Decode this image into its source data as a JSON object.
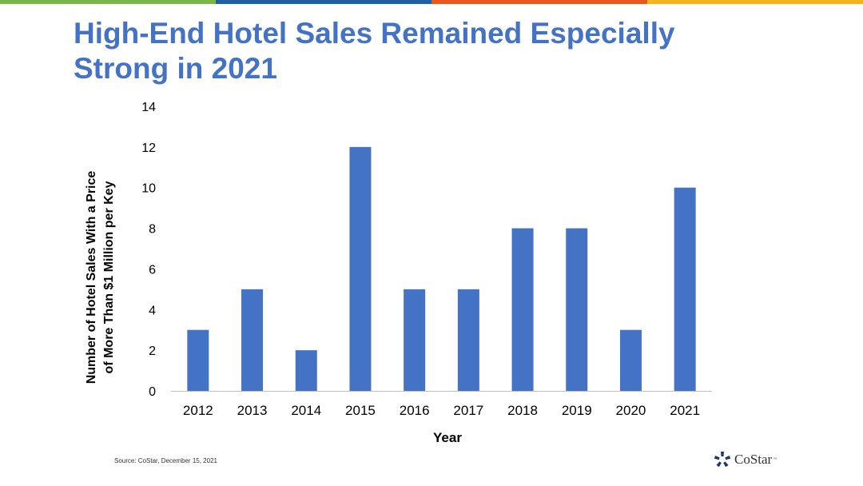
{
  "slide": {
    "title_line1": "High-End Hotel Sales Remained Especially",
    "title_line2": "Strong in 2021",
    "source": "Source: CoStar, December 15, 2021",
    "logo_text": "CoStar",
    "logo_tm": "™"
  },
  "colors": {
    "bar": "#4472C4",
    "title": "#4472C4",
    "bar_stripes": [
      "#7AB648",
      "#1F5FA8",
      "#E8581C",
      "#F5B31E"
    ]
  },
  "chart_data": {
    "type": "bar",
    "title": "",
    "categories": [
      "2012",
      "2013",
      "2014",
      "2015",
      "2016",
      "2017",
      "2018",
      "2019",
      "2020",
      "2021"
    ],
    "values": [
      3,
      5,
      2,
      12,
      5,
      5,
      8,
      8,
      3,
      10
    ],
    "xlabel": "Year",
    "ylabel_line1": "Number of Hotel Sales With a Price",
    "ylabel_line2": "of More Than $1 Million per Key",
    "ylim": [
      0,
      14
    ],
    "yticks": [
      0,
      2,
      4,
      6,
      8,
      10,
      12,
      14
    ],
    "grid": false,
    "legend": "none"
  }
}
